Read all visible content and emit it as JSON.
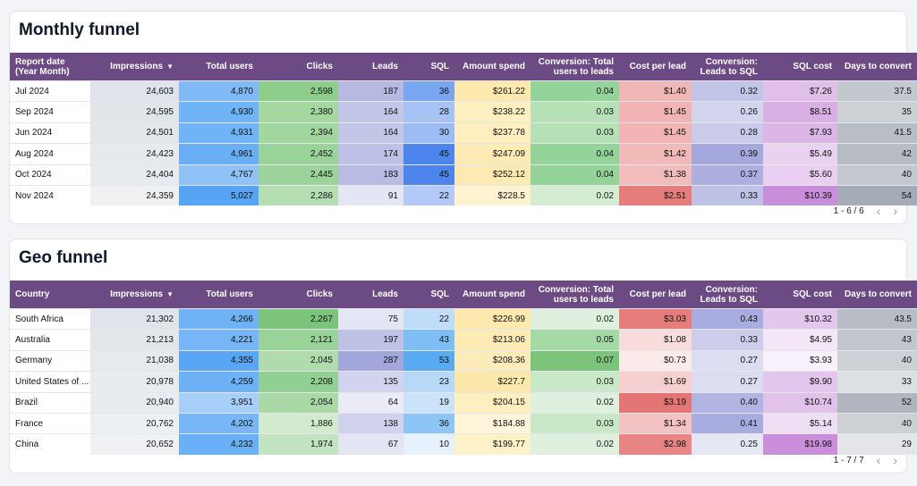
{
  "tables": [
    {
      "title": "Monthly funnel",
      "headers": [
        "Report date (Year Month)",
        "Impressions",
        "Total users",
        "Clicks",
        "Leads",
        "SQL",
        "Amount spend",
        "Conversion: Total users to leads",
        "Cost per lead",
        "Conversion: Leads to SQL",
        "SQL cost",
        "Days to convert"
      ],
      "rows": [
        [
          "Jul 2024",
          "24,603",
          "4,870",
          "2,598",
          "187",
          "36",
          "$261.22",
          "0.04",
          "$1.40",
          "0.32",
          "$7.26",
          "37.5"
        ],
        [
          "Sep 2024",
          "24,595",
          "4,930",
          "2,380",
          "164",
          "28",
          "$238.22",
          "0.03",
          "$1.45",
          "0.26",
          "$8.51",
          "35"
        ],
        [
          "Jun 2024",
          "24,501",
          "4,931",
          "2,394",
          "164",
          "30",
          "$237.78",
          "0.03",
          "$1.45",
          "0.28",
          "$7.93",
          "41.5"
        ],
        [
          "Aug 2024",
          "24,423",
          "4,961",
          "2,452",
          "174",
          "45",
          "$247.09",
          "0.04",
          "$1.42",
          "0.39",
          "$5.49",
          "42"
        ],
        [
          "Oct 2024",
          "24,404",
          "4,767",
          "2,445",
          "183",
          "45",
          "$252.12",
          "0.04",
          "$1.38",
          "0.37",
          "$5.60",
          "40"
        ],
        [
          "Nov 2024",
          "24,359",
          "5,027",
          "2,286",
          "91",
          "22",
          "$228.5",
          "0.02",
          "$2.51",
          "0.33",
          "$10.39",
          "54"
        ]
      ],
      "colors": [
        [
          "#fff",
          "#dfe4ea",
          "#7fbaf7",
          "#8fcd8d",
          "#b7b9e2",
          "#7aa6f1",
          "#fde9ae",
          "#94d399",
          "#f1b7b7",
          "#c2c5e7",
          "#e0c0e9",
          "#c3c8ce"
        ],
        [
          "#fff",
          "#e0e5ea",
          "#70b3f6",
          "#a5d8a1",
          "#c4c6e7",
          "#a7c3f4",
          "#feefc0",
          "#b6e0b5",
          "#f1b3b3",
          "#d3d4ee",
          "#d8b0e3",
          "#cdd1d6"
        ],
        [
          "#fff",
          "#e3e7ec",
          "#70b3f6",
          "#a2d69f",
          "#c4c6e7",
          "#9cbcf3",
          "#feeec0",
          "#b6e0b5",
          "#f1b3b3",
          "#cacbea",
          "#dbb6e6",
          "#b9bec6"
        ],
        [
          "#fff",
          "#e6e9ed",
          "#6aaef5",
          "#9ad39a",
          "#bec0e5",
          "#4c86ec",
          "#fdebb6",
          "#94d399",
          "#f2b9b9",
          "#a5a8dc",
          "#e9d1f0",
          "#b7bcc4"
        ],
        [
          "#fff",
          "#e7eaee",
          "#8fc3f8",
          "#9bd39b",
          "#b9bbe3",
          "#4c86ec",
          "#fdeab2",
          "#94d399",
          "#f3bcbc",
          "#acafdf",
          "#e9d0f0",
          "#c3c8ce"
        ],
        [
          "#fff",
          "#eef0f2",
          "#57a3f4",
          "#b5dfb2",
          "#e5e6f5",
          "#b2caf5",
          "#fff3d1",
          "#d4edd2",
          "#e67d7d",
          "#bfc1e5",
          "#c98fdb",
          "#a6acb5"
        ]
      ],
      "pager": "1 - 6 / 6"
    },
    {
      "title": "Geo funnel",
      "headers": [
        "Country",
        "Impressions",
        "Total users",
        "Clicks",
        "Leads",
        "SQL",
        "Amount spend",
        "Conversion: Total users to leads",
        "Cost per lead",
        "Conversion: Leads to SQL",
        "SQL cost",
        "Days to convert"
      ],
      "rows": [
        [
          "South Africa",
          "21,302",
          "4,266",
          "2,267",
          "75",
          "22",
          "$226.99",
          "0.02",
          "$3.03",
          "0.43",
          "$10.32",
          "43.5"
        ],
        [
          "Australia",
          "21,213",
          "4,221",
          "2,121",
          "197",
          "43",
          "$213.06",
          "0.05",
          "$1.08",
          "0.33",
          "$4.95",
          "43"
        ],
        [
          "Germany",
          "21,038",
          "4,355",
          "2,045",
          "287",
          "53",
          "$208.36",
          "0.07",
          "$0.73",
          "0.27",
          "$3.93",
          "40"
        ],
        [
          "United States of ...",
          "20,978",
          "4,259",
          "2,208",
          "135",
          "23",
          "$227.7",
          "0.03",
          "$1.69",
          "0.27",
          "$9.90",
          "33"
        ],
        [
          "Brazil",
          "20,940",
          "3,951",
          "2,054",
          "64",
          "19",
          "$204.15",
          "0.02",
          "$3.19",
          "0.40",
          "$10.74",
          "52"
        ],
        [
          "France",
          "20,762",
          "4,202",
          "1,886",
          "138",
          "36",
          "$184.88",
          "0.03",
          "$1.34",
          "0.41",
          "$5.14",
          "40"
        ],
        [
          "China",
          "20,652",
          "4,232",
          "1,974",
          "67",
          "10",
          "$199.77",
          "0.02",
          "$2.98",
          "0.25",
          "$19.98",
          "29"
        ]
      ],
      "colors": [
        [
          "#fff",
          "#dfe4ea",
          "#6fb2f6",
          "#7cc47c",
          "#e5e6f5",
          "#bfdcf8",
          "#fde9ae",
          "#dff1de",
          "#e67d7d",
          "#a9acdf",
          "#e3c7ec",
          "#b8bdc5"
        ],
        [
          "#fff",
          "#e1e6eb",
          "#76b6f7",
          "#9ad39a",
          "#bfc1e5",
          "#7fbef4",
          "#fdebb5",
          "#a5daa6",
          "#f8dcdc",
          "#cbcdeb",
          "#f3e6f7",
          "#c2c7ce"
        ],
        [
          "#fff",
          "#e6e9ed",
          "#5aa5f4",
          "#b0dcad",
          "#a2a6db",
          "#58aaf1",
          "#fdecb9",
          "#7cc47c",
          "#fbeaea",
          "#dcddf1",
          "#f8f0fa",
          "#cdd1d6"
        ],
        [
          "#fff",
          "#e8ebef",
          "#6eb1f6",
          "#91d092",
          "#d2d3ee",
          "#b8d8f7",
          "#fde8ab",
          "#c9e8c7",
          "#f6d0d0",
          "#dcddf1",
          "#e2c6eb",
          "#dcdfe3"
        ],
        [
          "#fff",
          "#e9ecef",
          "#a7cff9",
          "#aad9a7",
          "#eaebf7",
          "#cbe2f9",
          "#feefc1",
          "#dff1de",
          "#e47575",
          "#b2b4e1",
          "#e1c3ea",
          "#b0b5be"
        ],
        [
          "#fff",
          "#edf0f2",
          "#77b6f7",
          "#d2ebcf",
          "#d1d2ee",
          "#8dc5f5",
          "#fff5da",
          "#c9e8c7",
          "#f3c2c2",
          "#a9acdf",
          "#efdff4",
          "#cdd1d6"
        ],
        [
          "#fff",
          "#eff1f3",
          "#6ab0f6",
          "#c3e4c1",
          "#e3e4f4",
          "#e6f1fc",
          "#fff1c8",
          "#dff1de",
          "#e88686",
          "#e6e7f5",
          "#c98fdb",
          "#e3e5e8"
        ]
      ],
      "pager": "1 - 7 / 7"
    }
  ],
  "sort_indicator": "▼",
  "pager_prev": "‹",
  "pager_next": "›"
}
